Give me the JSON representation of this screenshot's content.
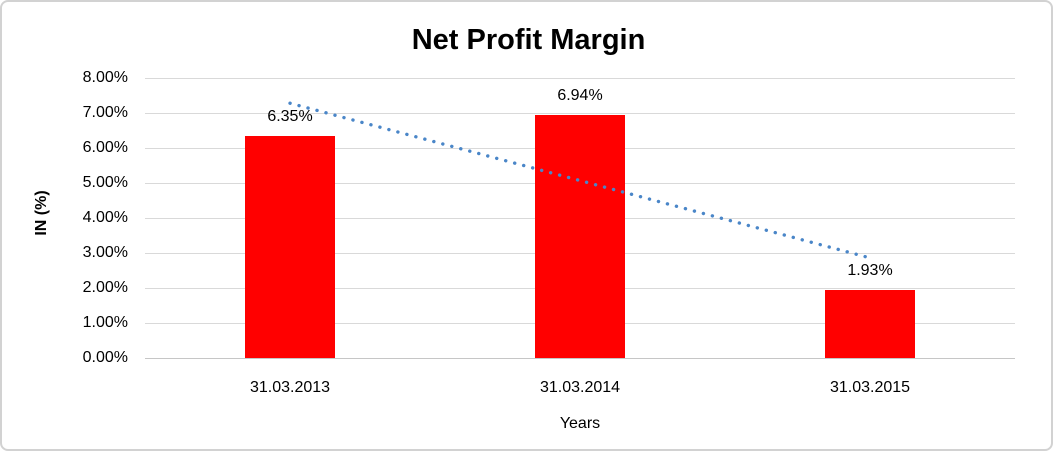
{
  "chart_data": {
    "type": "bar",
    "title": "Net Profit Margin",
    "xlabel": "Years",
    "ylabel": "IN (%)",
    "categories": [
      "31.03.2013",
      "31.03.2014",
      "31.03.2015"
    ],
    "values": [
      6.35,
      6.94,
      1.93
    ],
    "data_labels": [
      "6.35%",
      "6.94%",
      "1.93%"
    ],
    "ylim": [
      0,
      8
    ],
    "ytick_step": 1,
    "yticks": [
      "0.00%",
      "1.00%",
      "2.00%",
      "3.00%",
      "4.00%",
      "5.00%",
      "6.00%",
      "7.00%",
      "8.00%"
    ],
    "grid": true,
    "legend": false,
    "bar_color": "#ff0000",
    "grid_color": "#d9d9d9",
    "axis_line_color": "#c6c6c6",
    "text_color": "#000000",
    "border_color": "#d2d2d2",
    "trendline": {
      "type": "linear",
      "style": "dotted",
      "color": "#4a86c8",
      "start_value": 7.28,
      "end_value": 2.86
    }
  }
}
